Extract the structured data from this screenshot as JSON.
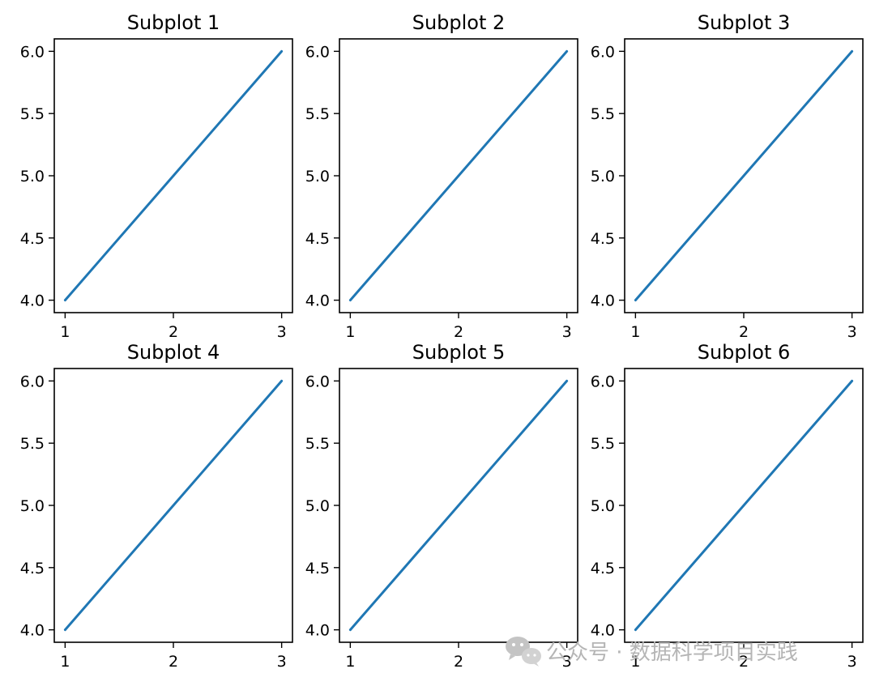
{
  "colors": {
    "line": "#1f77b4",
    "axes": "#000000",
    "background": "#ffffff",
    "watermark": "#b5b5b5"
  },
  "watermark": {
    "icon": "wechat-icon",
    "text": "公众号 · 数据科学项目实践"
  },
  "chart_data": [
    {
      "type": "line",
      "title": "Subplot 1",
      "x": [
        1,
        2,
        3
      ],
      "y": [
        4,
        5,
        6
      ],
      "xticks": [
        "1",
        "2",
        "3"
      ],
      "yticks": [
        "4.0",
        "4.5",
        "5.0",
        "5.5",
        "6.0"
      ],
      "xlim": [
        0.9,
        3.1
      ],
      "ylim": [
        3.9,
        6.1
      ],
      "grid": false
    },
    {
      "type": "line",
      "title": "Subplot 2",
      "x": [
        1,
        2,
        3
      ],
      "y": [
        4,
        5,
        6
      ],
      "xticks": [
        "1",
        "2",
        "3"
      ],
      "yticks": [
        "4.0",
        "4.5",
        "5.0",
        "5.5",
        "6.0"
      ],
      "xlim": [
        0.9,
        3.1
      ],
      "ylim": [
        3.9,
        6.1
      ],
      "grid": false
    },
    {
      "type": "line",
      "title": "Subplot 3",
      "x": [
        1,
        2,
        3
      ],
      "y": [
        4,
        5,
        6
      ],
      "xticks": [
        "1",
        "2",
        "3"
      ],
      "yticks": [
        "4.0",
        "4.5",
        "5.0",
        "5.5",
        "6.0"
      ],
      "xlim": [
        0.9,
        3.1
      ],
      "ylim": [
        3.9,
        6.1
      ],
      "grid": false
    },
    {
      "type": "line",
      "title": "Subplot 4",
      "x": [
        1,
        2,
        3
      ],
      "y": [
        4,
        5,
        6
      ],
      "xticks": [
        "1",
        "2",
        "3"
      ],
      "yticks": [
        "4.0",
        "4.5",
        "5.0",
        "5.5",
        "6.0"
      ],
      "xlim": [
        0.9,
        3.1
      ],
      "ylim": [
        3.9,
        6.1
      ],
      "grid": false
    },
    {
      "type": "line",
      "title": "Subplot 5",
      "x": [
        1,
        2,
        3
      ],
      "y": [
        4,
        5,
        6
      ],
      "xticks": [
        "1",
        "2",
        "3"
      ],
      "yticks": [
        "4.0",
        "4.5",
        "5.0",
        "5.5",
        "6.0"
      ],
      "xlim": [
        0.9,
        3.1
      ],
      "ylim": [
        3.9,
        6.1
      ],
      "grid": false
    },
    {
      "type": "line",
      "title": "Subplot 6",
      "x": [
        1,
        2,
        3
      ],
      "y": [
        4,
        5,
        6
      ],
      "xticks": [
        "1",
        "2",
        "3"
      ],
      "yticks": [
        "4.0",
        "4.5",
        "5.0",
        "5.5",
        "6.0"
      ],
      "xlim": [
        0.9,
        3.1
      ],
      "ylim": [
        3.9,
        6.1
      ],
      "grid": false
    }
  ]
}
